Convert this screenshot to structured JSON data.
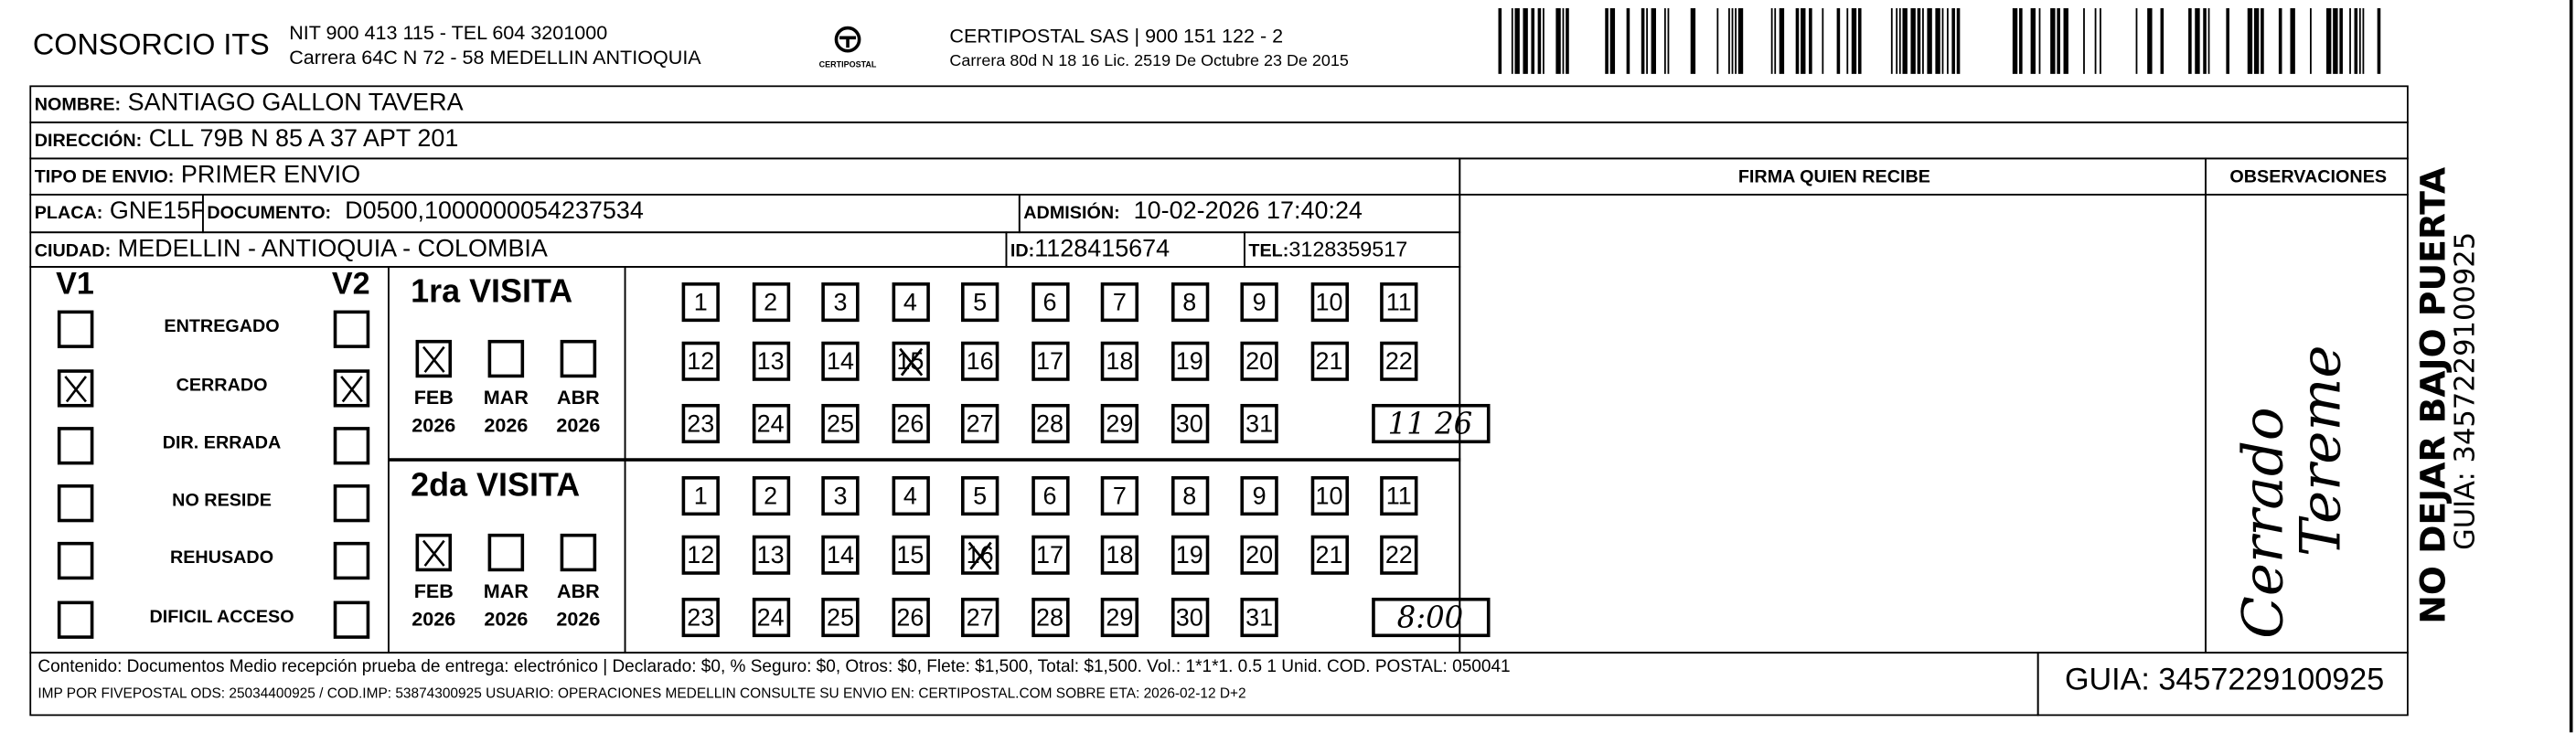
{
  "header": {
    "company": "CONSORCIO ITS",
    "company_line1": "NIT 900 413 115 - TEL 604 3201000",
    "company_line2": "Carrera 64C N 72 - 58 MEDELLIN ANTIOQUIA",
    "logo_text": "CERTIPOSTAL",
    "carrier_line1": "CERTIPOSTAL SAS | 900 151 122 - 2",
    "carrier_line2": "Carrera 80d N 18 16  Lic. 2519 De Octubre 23 De 2015",
    "barcode_value": "3457229100925"
  },
  "fields": {
    "nombre_label": "NOMBRE:",
    "nombre": "SANTIAGO GALLON TAVERA",
    "direccion_label": "DIRECCIÓN:",
    "direccion": "CLL 79B N 85 A 37 APT 201",
    "tipo_label": "TIPO DE ENVIO:",
    "tipo": "PRIMER ENVIO",
    "placa_label": "PLACA:",
    "placa": "GNE15F",
    "documento_label": "DOCUMENTO:",
    "documento": "D0500,1000000054237534",
    "admision_label": "ADMISIÓN:",
    "admision": "10-02-2026 17:40:24",
    "ciudad_label": "CIUDAD:",
    "ciudad": "MEDELLIN - ANTIOQUIA - COLOMBIA",
    "id_label": "ID:",
    "id": "1128415674",
    "tel_label": "TEL:",
    "tel": "3128359517"
  },
  "firma_label": "FIRMA QUIEN RECIBE",
  "observaciones_label": "OBSERVACIONES",
  "observaciones_handwriting": [
    "Cerrado",
    "Tereme"
  ],
  "status": {
    "v1_label": "V1",
    "v2_label": "V2",
    "items": [
      {
        "label": "ENTREGADO",
        "v1": false,
        "v2": false
      },
      {
        "label": "CERRADO",
        "v1": true,
        "v2": true
      },
      {
        "label": "DIR. ERRADA",
        "v1": false,
        "v2": false
      },
      {
        "label": "NO RESIDE",
        "v1": false,
        "v2": false
      },
      {
        "label": "REHUSADO",
        "v1": false,
        "v2": false
      },
      {
        "label": "DIFICIL ACCESO",
        "v1": false,
        "v2": false
      }
    ]
  },
  "visits": [
    {
      "title": "1ra VISITA",
      "months": [
        {
          "m": "FEB",
          "y": "2026",
          "checked": true
        },
        {
          "m": "MAR",
          "y": "2026",
          "checked": false
        },
        {
          "m": "ABR",
          "y": "2026",
          "checked": false
        }
      ],
      "marked_day": 15,
      "handwritten_time": "11 26"
    },
    {
      "title": "2da VISITA",
      "months": [
        {
          "m": "FEB",
          "y": "2026",
          "checked": true
        },
        {
          "m": "MAR",
          "y": "2026",
          "checked": false
        },
        {
          "m": "ABR",
          "y": "2026",
          "checked": false
        }
      ],
      "marked_day": 16,
      "handwritten_time": "8:00"
    }
  ],
  "side": {
    "warning": "NO DEJAR BAJO PUERTA",
    "guia": "GUIA: 3457229100925"
  },
  "footer": {
    "line1": "Contenido: Documentos Medio recepción prueba de entrega: electrónico | Declarado: $0, % Seguro: $0, Otros: $0, Flete: $1,500, Total: $1,500. Vol.: 1*1*1. 0.5  1 Unid. COD. POSTAL: 050041",
    "line2": "IMP POR FIVEPOSTAL ODS: 25034400925 / COD.IMP: 53874300925 USUARIO: OPERACIONES MEDELLIN CONSULTE SU ENVIO EN: CERTIPOSTAL.COM SOBRE ETA: 2026-02-12 D+2",
    "guia": "GUIA: 3457229100925"
  }
}
